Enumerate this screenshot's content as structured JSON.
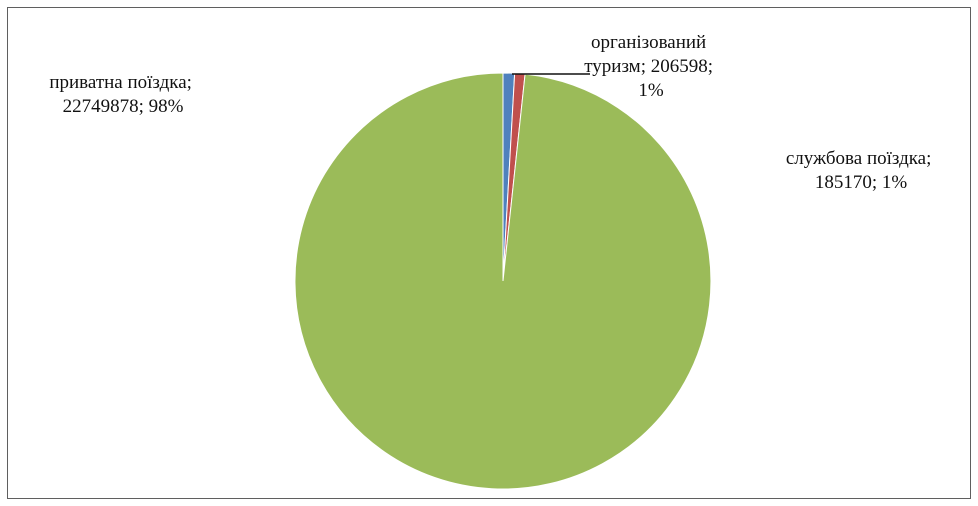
{
  "chart_data": {
    "type": "pie",
    "title": "",
    "slices": [
      {
        "name": "організований туризм",
        "value": 206598,
        "percent": "1%",
        "color": "#4f81bd",
        "label_lines": [
          "організований",
          "туризм; 206598;",
          "1%"
        ]
      },
      {
        "name": "службова поїздка",
        "value": 185170,
        "percent": "1%",
        "color": "#c0504d",
        "label_lines": [
          "службова поїздка;",
          "185170; 1%"
        ]
      },
      {
        "name": "приватна поїздка",
        "value": 22749878,
        "percent": "98%",
        "color": "#9bbb59",
        "label_lines": [
          "приватна поїздка;",
          "22749878; 98%"
        ]
      }
    ],
    "start_angle": "12 o'clock",
    "direction": "clockwise",
    "legend": "none"
  }
}
